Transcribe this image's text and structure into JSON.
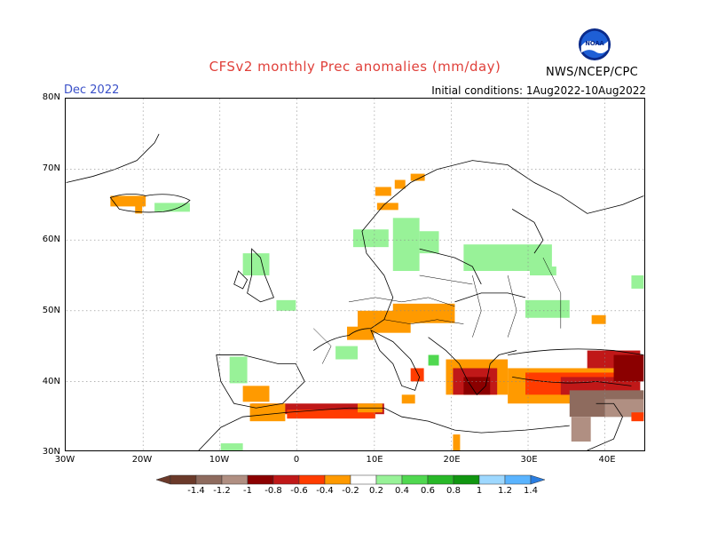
{
  "header": {
    "title": "CFSv2 monthly Prec anomalies (mm/day)",
    "month": "Dec 2022",
    "initial_conditions": "Initial conditions: 1Aug2022-10Aug2022",
    "agency": "NWS/NCEP/CPC",
    "logo_text": "NOAA"
  },
  "axes": {
    "lat_labels": [
      "80N",
      "70N",
      "60N",
      "50N",
      "40N",
      "30N"
    ],
    "lon_labels": [
      "30W",
      "20W",
      "10W",
      "0",
      "10E",
      "20E",
      "30E",
      "40E"
    ]
  },
  "colorbar": {
    "labels": [
      "-1.4",
      "-1.2",
      "-1",
      "-0.8",
      "-0.6",
      "-0.4",
      "-0.2",
      "0.2",
      "0.4",
      "0.6",
      "0.8",
      "1",
      "1.2",
      "1.4"
    ],
    "colors": [
      "#6b3a2a",
      "#8e6b5e",
      "#b08f82",
      "#8b0000",
      "#c01818",
      "#ff3c00",
      "#ff9a00",
      "#ffffff",
      "#98f298",
      "#50d850",
      "#28b828",
      "#109610",
      "#9ed8ff",
      "#5ab4ff",
      "#2a7de0"
    ]
  }
}
